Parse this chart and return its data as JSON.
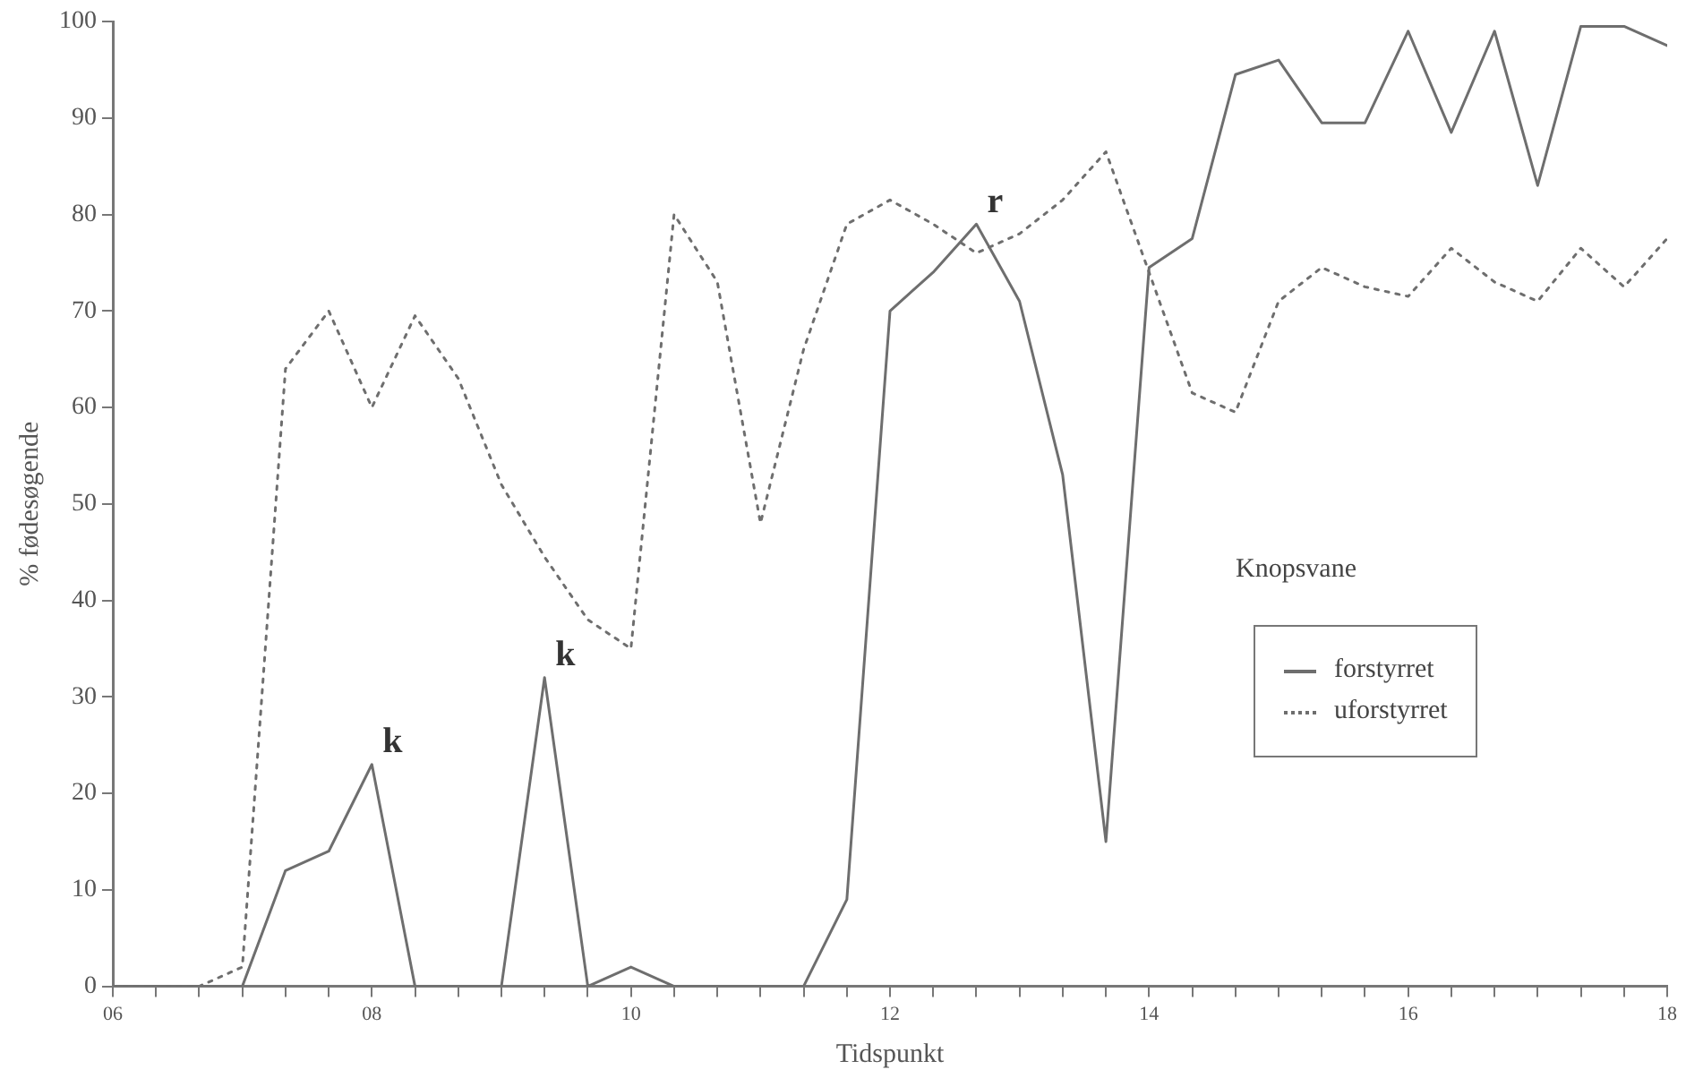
{
  "chart_data": {
    "type": "line",
    "xlabel": "Tidspunkt",
    "ylabel": "% fødesøgende",
    "legend_title": "Knopsvane",
    "legend": "right",
    "grid": false,
    "marker": "none",
    "x": [
      6,
      6.333,
      6.667,
      7,
      7.333,
      7.667,
      8,
      8.333,
      8.667,
      9,
      9.333,
      9.667,
      10,
      10.333,
      10.667,
      11,
      11.333,
      11.667,
      12,
      12.333,
      12.667,
      13,
      13.333,
      13.667,
      14,
      14.333,
      14.667,
      15,
      15.333,
      15.667,
      16,
      16.333,
      16.667,
      17,
      17.333,
      17.667,
      18
    ],
    "xlim": [
      6,
      18
    ],
    "xticks": [
      {
        "value": 6,
        "label": "06"
      },
      {
        "value": 6.333,
        "label": null
      },
      {
        "value": 6.667,
        "label": null
      },
      {
        "value": 7,
        "label": null
      },
      {
        "value": 7.333,
        "label": null
      },
      {
        "value": 7.667,
        "label": null
      },
      {
        "value": 8,
        "label": "08"
      },
      {
        "value": 8.333,
        "label": null
      },
      {
        "value": 8.667,
        "label": null
      },
      {
        "value": 9,
        "label": null
      },
      {
        "value": 9.333,
        "label": null
      },
      {
        "value": 9.667,
        "label": null
      },
      {
        "value": 10,
        "label": "10"
      },
      {
        "value": 10.333,
        "label": null
      },
      {
        "value": 10.667,
        "label": null
      },
      {
        "value": 11,
        "label": null
      },
      {
        "value": 11.333,
        "label": null
      },
      {
        "value": 11.667,
        "label": null
      },
      {
        "value": 12,
        "label": "12"
      },
      {
        "value": 12.333,
        "label": null
      },
      {
        "value": 12.667,
        "label": null
      },
      {
        "value": 13,
        "label": null
      },
      {
        "value": 13.333,
        "label": null
      },
      {
        "value": 13.667,
        "label": null
      },
      {
        "value": 14,
        "label": "14"
      },
      {
        "value": 14.333,
        "label": null
      },
      {
        "value": 14.667,
        "label": null
      },
      {
        "value": 15,
        "label": null
      },
      {
        "value": 15.333,
        "label": null
      },
      {
        "value": 15.667,
        "label": null
      },
      {
        "value": 16,
        "label": "16"
      },
      {
        "value": 16.333,
        "label": null
      },
      {
        "value": 16.667,
        "label": null
      },
      {
        "value": 17,
        "label": null
      },
      {
        "value": 17.333,
        "label": null
      },
      {
        "value": 17.667,
        "label": null
      },
      {
        "value": 18,
        "label": "18"
      }
    ],
    "ylim": [
      0,
      100
    ],
    "yticks": [
      0,
      10,
      20,
      30,
      40,
      50,
      60,
      70,
      80,
      90,
      100
    ],
    "series": [
      {
        "name": "forstyrret",
        "color": "#6e6e6e",
        "line_style": "solid",
        "values": [
          0,
          0,
          0,
          0,
          12,
          14,
          23,
          0,
          0,
          0,
          32,
          0,
          2,
          0,
          0,
          0,
          0,
          9,
          70,
          74,
          79,
          71,
          53,
          15,
          74.5,
          77.5,
          94.5,
          96,
          89.5,
          89.5,
          99,
          88.5,
          99,
          83,
          99.5,
          99.5,
          97.5
        ]
      },
      {
        "name": "uforstyrret",
        "color": "#6e6e6e",
        "line_style": "dotted",
        "values": [
          0,
          0,
          0,
          2,
          64,
          70,
          60,
          69.5,
          63,
          52,
          44.5,
          38,
          35,
          80,
          73,
          48,
          66,
          79,
          81.5,
          79,
          76,
          78,
          81.5,
          86.5,
          74,
          61.5,
          59.5,
          71,
          74.5,
          72.5,
          71.5,
          76.5,
          73,
          71,
          76.5,
          72.5,
          77.5
        ]
      }
    ],
    "annotations": [
      {
        "text": "k",
        "x": 8,
        "y": 23
      },
      {
        "text": "k",
        "x": 9.333,
        "y": 32
      },
      {
        "text": "r",
        "x": 12.667,
        "y": 79
      }
    ]
  }
}
